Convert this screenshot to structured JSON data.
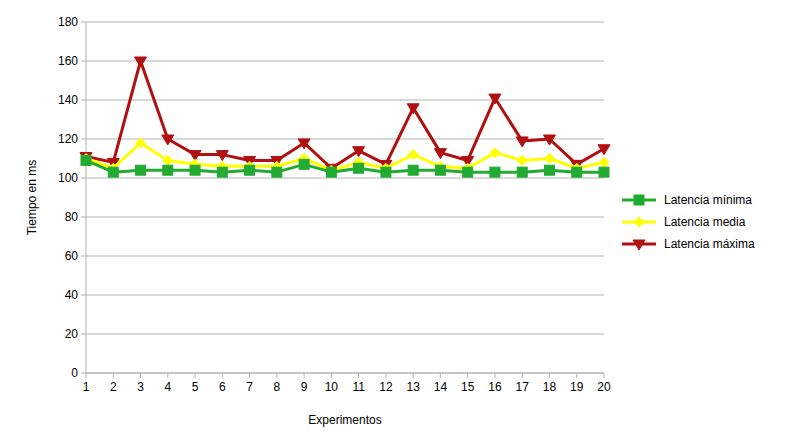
{
  "chart_data": {
    "type": "line",
    "x_label": "Experimentos",
    "y_label": "Tiempo en ms",
    "categories": [
      1,
      2,
      3,
      4,
      5,
      6,
      7,
      8,
      9,
      10,
      11,
      12,
      13,
      14,
      15,
      16,
      17,
      18,
      19,
      20
    ],
    "series": [
      {
        "name": "Latencia mínima",
        "color": "#22aa33",
        "marker": "square",
        "values": [
          109,
          103,
          104,
          104,
          104,
          103,
          104,
          103,
          107,
          103,
          105,
          103,
          104,
          104,
          103,
          103,
          103,
          104,
          103,
          103
        ]
      },
      {
        "name": "Latencia media",
        "color": "#ffff00",
        "marker": "diamond",
        "values": [
          110,
          105,
          118,
          109,
          107,
          106,
          106,
          106,
          110,
          104,
          108,
          105,
          112,
          106,
          105,
          113,
          109,
          110,
          105,
          108
        ]
      },
      {
        "name": "Latencia máxima",
        "color": "#b01010",
        "marker": "triangle-down",
        "values": [
          111,
          108,
          160,
          120,
          112,
          112,
          109,
          109,
          118,
          105,
          114,
          107,
          136,
          113,
          109,
          141,
          119,
          120,
          107,
          115
        ]
      }
    ],
    "ylim": [
      0,
      180
    ],
    "yticks": [
      0,
      20,
      40,
      60,
      80,
      100,
      120,
      140,
      160,
      180
    ],
    "grid": true,
    "legend": "right"
  }
}
